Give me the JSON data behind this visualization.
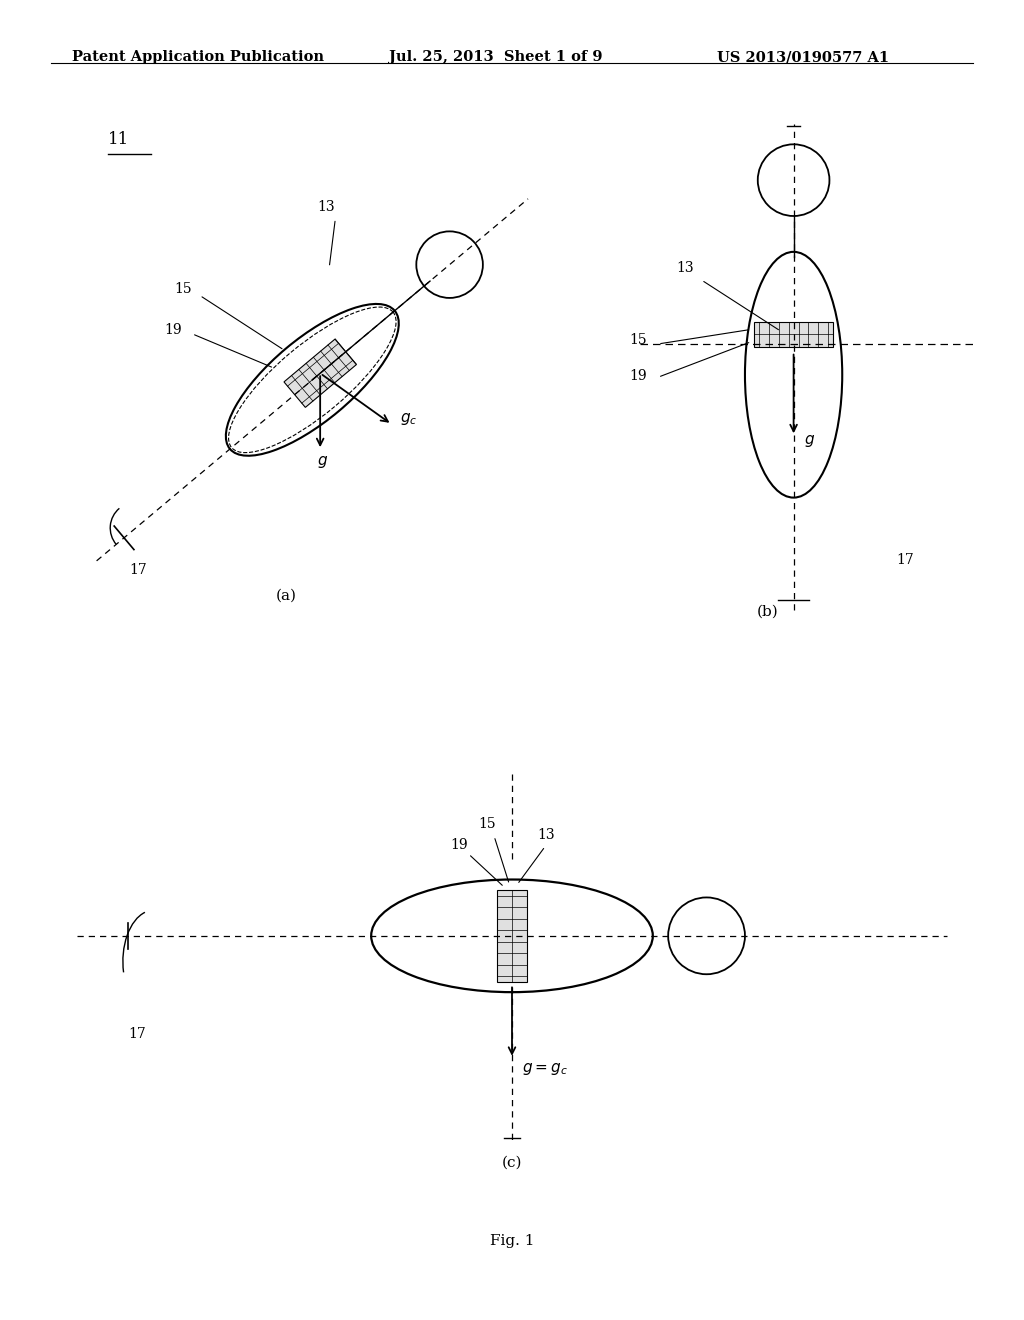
{
  "background_color": "#ffffff",
  "header_left": "Patent Application Publication",
  "header_center": "Jul. 25, 2013  Sheet 1 of 9",
  "header_right": "US 2013/0190577 A1",
  "fig_label": "Fig. 1",
  "header_fontsize": 10.5,
  "label_fontsize": 10
}
